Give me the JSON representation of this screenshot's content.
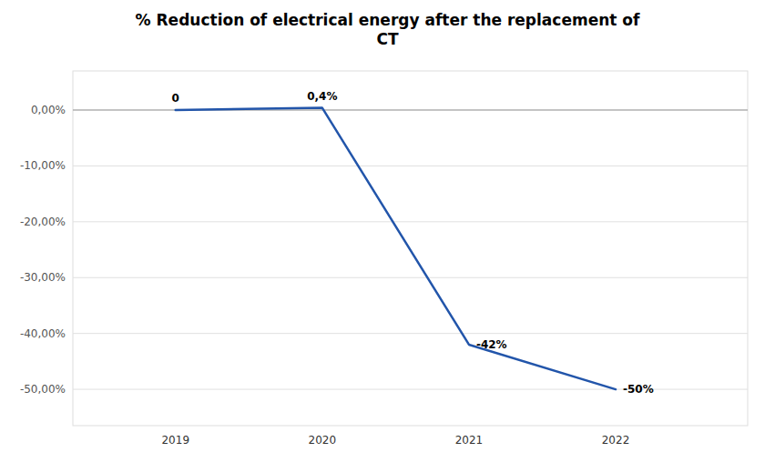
{
  "chart_data": {
    "type": "line",
    "title": "% Reduction of electrical energy after the replacement of\nCT",
    "x": [
      2019,
      2020,
      2021,
      2022
    ],
    "values": [
      0.0,
      0.004,
      -0.42,
      -0.5
    ],
    "value_labels": [
      "0",
      "0,4%",
      "-42%",
      "-50%"
    ],
    "data_labels": true,
    "color": "#2255AA",
    "xlim": [
      2018.3,
      2022.9
    ],
    "xticks": [
      2019,
      2020,
      2021,
      2022
    ],
    "ylim": [
      -0.565,
      0.07
    ],
    "yticks": [
      {
        "value": 0.0,
        "label": "0,00%"
      },
      {
        "value": -0.1,
        "label": "-10,00%"
      },
      {
        "value": -0.2,
        "label": "-20,00%"
      },
      {
        "value": -0.3,
        "label": "-30,00%"
      },
      {
        "value": -0.4,
        "label": "-40,00%"
      },
      {
        "value": -0.5,
        "label": "-50,00%"
      }
    ],
    "grid": true
  }
}
